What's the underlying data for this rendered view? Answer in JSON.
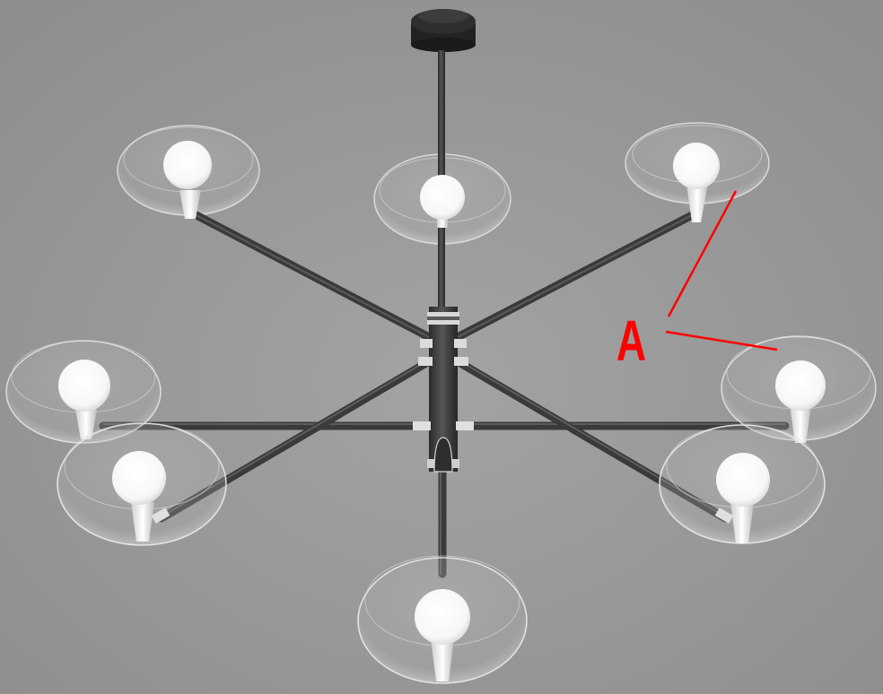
{
  "figure": {
    "subject": "chandelier",
    "arms": 8,
    "background_color": "#9a9a9a",
    "rod_color": "#3c3c3c",
    "globe_color": "#ffffff",
    "callout_color": "#ff0000"
  },
  "callout": {
    "label": "A"
  }
}
